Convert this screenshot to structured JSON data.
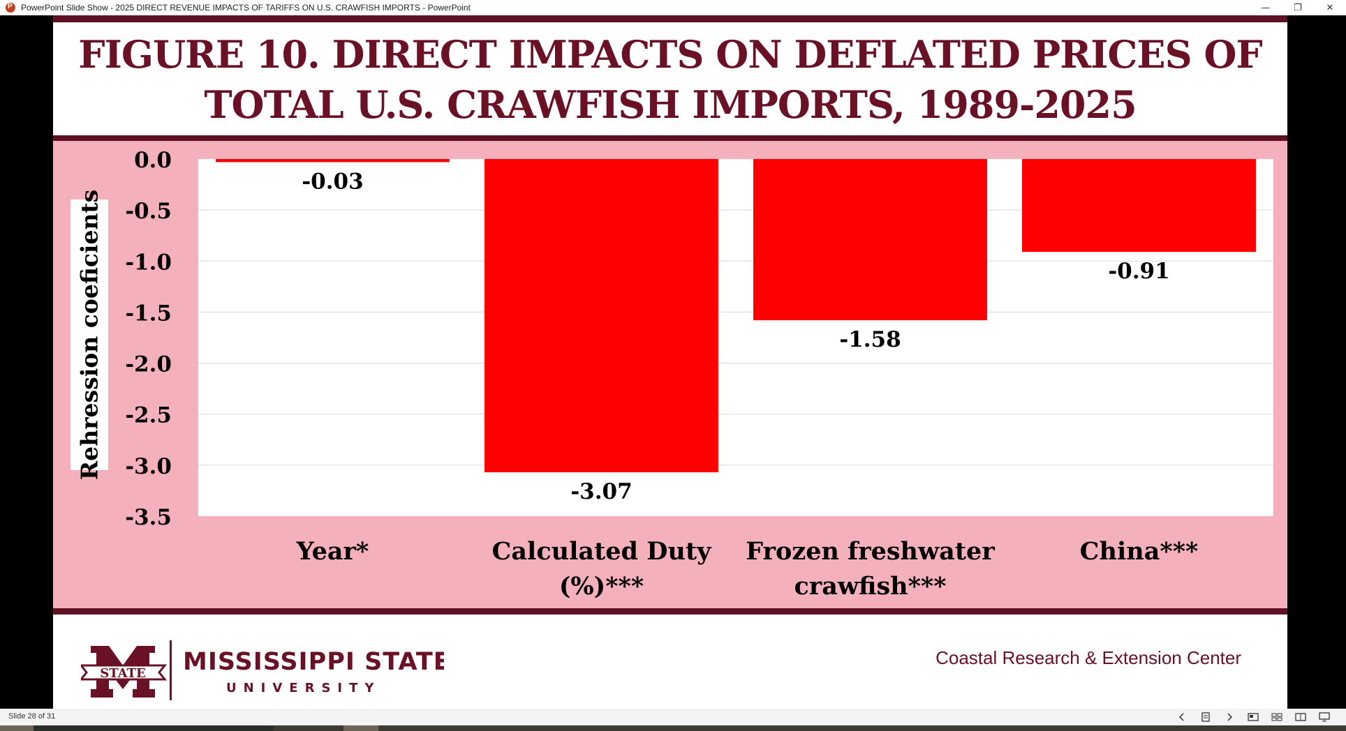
{
  "window": {
    "title": "PowerPoint Slide Show  -  2025 DIRECT REVENUE IMPACTS OF TARIFFS ON U.S. CRAWFISH IMPORTS - PowerPoint",
    "minimize_glyph": "—",
    "restore_glyph": "❐",
    "close_glyph": "✕"
  },
  "slide": {
    "title_line1": "FIGURE 10. DIRECT IMPACTS ON DEFLATED PRICES OF",
    "title_line2": "TOTAL U.S. CRAWFISH IMPORTS, 1989-2025",
    "footer": {
      "university_name": "MISSISSIPPI STATE",
      "university_sub": "UNIVERSITY",
      "logo_text": "STATE",
      "center_name": "Coastal Research & Extension Center"
    }
  },
  "chart_data": {
    "type": "bar",
    "title": "FIGURE 10. DIRECT IMPACTS ON DEFLATED PRICES OF TOTAL U.S. CRAWFISH IMPORTS, 1989-2025",
    "categories": [
      [
        "Year*"
      ],
      [
        "Calculated Duty",
        "(%)***"
      ],
      [
        "Frozen freshwater",
        "crawfish***"
      ],
      [
        "China***"
      ]
    ],
    "values": [
      -0.03,
      -3.07,
      -1.58,
      -0.91
    ],
    "value_labels": [
      "-0.03",
      "-3.07",
      "-1.58",
      "-0.91"
    ],
    "ylabel": "Rehression coeficients",
    "xlabel": "",
    "ylim": [
      -3.5,
      0.0
    ],
    "yticks": [
      "0.0",
      "-0.5",
      "-1.0",
      "-1.5",
      "-2.0",
      "-2.5",
      "-3.0",
      "-3.5"
    ],
    "ytick_values": [
      0.0,
      -0.5,
      -1.0,
      -1.5,
      -2.0,
      -2.5,
      -3.0,
      -3.5
    ],
    "bar_color": "#ff0000",
    "panel_color": "#f5b1bb",
    "grid": true
  },
  "statusbar": {
    "slide_counter": "Slide 28 of 31",
    "icons": [
      "prev-icon",
      "menu-icon",
      "next-icon",
      "normal-view-icon",
      "slide-sorter-icon",
      "reading-view-icon",
      "slideshow-icon"
    ]
  },
  "colors": {
    "maroon": "#5d1123",
    "title_text": "#6b1126"
  }
}
